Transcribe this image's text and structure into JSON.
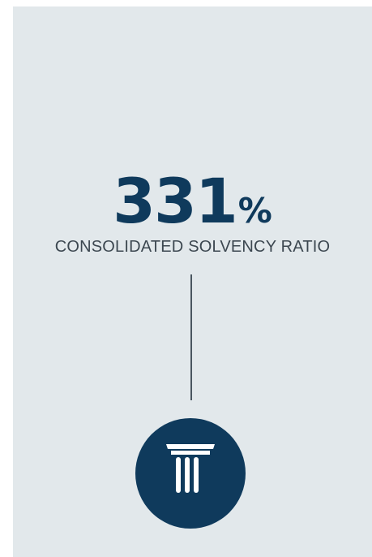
{
  "stat": {
    "value": "331",
    "unit": "%",
    "label": "CONSOLIDATED SOLVENCY RATIO"
  },
  "colors": {
    "background": "#e2e8eb",
    "accent": "#0f3a5c",
    "label": "#3c4750",
    "icon": "#ffffff"
  },
  "icon": {
    "name": "pillar-column-icon"
  }
}
